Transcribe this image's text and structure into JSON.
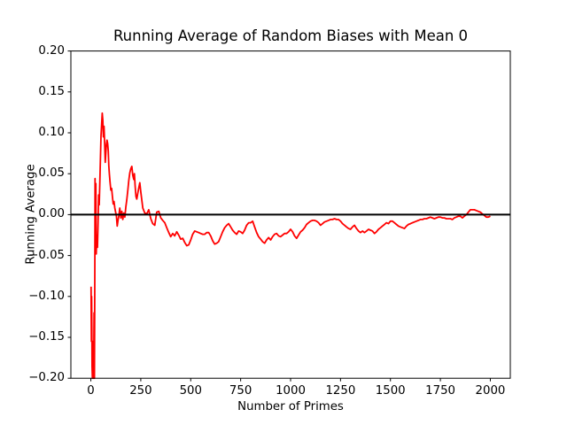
{
  "figure_title": "Running Average of Random Biases with Mean 0",
  "colors": {
    "background": "#ffffff",
    "axes": "#000000",
    "text": "#000000",
    "running_average_line": "#ff0000",
    "zero_line": "#000000"
  },
  "chart_data": {
    "type": "line",
    "title": "Running Average of Random Biases with Mean 0",
    "xlabel": "Number of Primes",
    "ylabel": "Running Average",
    "xlim": [
      -100,
      2100
    ],
    "ylim": [
      -0.2,
      0.2
    ],
    "grid": false,
    "legend": "none",
    "x_ticks": [
      0,
      250,
      500,
      750,
      1000,
      1250,
      1500,
      1750,
      2000
    ],
    "x_tick_labels": [
      "0",
      "250",
      "500",
      "750",
      "1000",
      "1250",
      "1500",
      "1750",
      "2000"
    ],
    "y_ticks": [
      -0.2,
      -0.15,
      -0.1,
      -0.05,
      0.0,
      0.05,
      0.1,
      0.15,
      0.2
    ],
    "y_tick_labels": [
      "−0.20",
      "−0.15",
      "−0.10",
      "−0.05",
      "0.00",
      "0.05",
      "0.10",
      "0.15",
      "0.20"
    ],
    "series": [
      {
        "name": "running-average",
        "color": "#ff0000",
        "line_width": 1.8,
        "x": [
          1,
          2,
          3,
          4,
          5,
          6,
          8,
          10,
          12,
          14,
          16,
          18,
          20,
          21,
          23,
          25,
          27,
          30,
          33,
          36,
          39,
          42,
          45,
          48,
          51,
          54,
          57,
          60,
          63,
          66,
          69,
          72,
          75,
          78,
          81,
          84,
          87,
          90,
          93,
          96,
          100,
          104,
          108,
          112,
          116,
          120,
          124,
          128,
          132,
          136,
          140,
          145,
          150,
          155,
          160,
          165,
          170,
          175,
          180,
          185,
          190,
          195,
          200,
          205,
          210,
          215,
          218,
          222,
          226,
          230,
          235,
          240,
          245,
          250,
          260,
          270,
          280,
          290,
          300,
          310,
          320,
          330,
          340,
          350,
          360,
          370,
          380,
          390,
          400,
          410,
          420,
          430,
          440,
          450,
          460,
          470,
          480,
          490,
          500,
          510,
          520,
          530,
          540,
          550,
          560,
          570,
          580,
          590,
          600,
          610,
          620,
          630,
          640,
          650,
          660,
          670,
          680,
          690,
          700,
          710,
          720,
          730,
          740,
          750,
          760,
          770,
          780,
          790,
          800,
          810,
          820,
          830,
          840,
          850,
          860,
          870,
          880,
          890,
          900,
          910,
          920,
          930,
          940,
          950,
          960,
          970,
          980,
          990,
          1000,
          1010,
          1020,
          1030,
          1040,
          1050,
          1060,
          1070,
          1080,
          1090,
          1100,
          1110,
          1120,
          1130,
          1140,
          1150,
          1160,
          1170,
          1180,
          1190,
          1200,
          1210,
          1220,
          1230,
          1240,
          1250,
          1260,
          1270,
          1280,
          1290,
          1300,
          1310,
          1320,
          1330,
          1340,
          1350,
          1360,
          1370,
          1380,
          1390,
          1400,
          1410,
          1420,
          1430,
          1440,
          1450,
          1460,
          1470,
          1480,
          1490,
          1500,
          1510,
          1520,
          1530,
          1540,
          1550,
          1560,
          1570,
          1580,
          1590,
          1600,
          1610,
          1620,
          1630,
          1640,
          1650,
          1660,
          1670,
          1680,
          1690,
          1700,
          1710,
          1720,
          1730,
          1740,
          1750,
          1760,
          1770,
          1780,
          1790,
          1800,
          1810,
          1820,
          1830,
          1840,
          1850,
          1860,
          1870,
          1880,
          1890,
          1900,
          1910,
          1920,
          1930,
          1940,
          1950,
          1960,
          1970,
          1980,
          1990,
          2000
        ],
        "y": [
          -0.088,
          -0.125,
          -0.155,
          -0.1,
          -0.14,
          -0.185,
          -0.2,
          -0.155,
          -0.198,
          -0.2,
          -0.12,
          -0.2,
          -0.05,
          0.044,
          -0.02,
          0.038,
          -0.048,
          -0.025,
          -0.04,
          -0.01,
          0.024,
          0.012,
          0.04,
          0.07,
          0.096,
          0.11,
          0.124,
          0.115,
          0.095,
          0.108,
          0.088,
          0.064,
          0.076,
          0.086,
          0.091,
          0.087,
          0.078,
          0.06,
          0.049,
          0.04,
          0.03,
          0.032,
          0.022,
          0.013,
          0.016,
          0.008,
          0.003,
          -0.002,
          -0.014,
          -0.007,
          -0.002,
          0.008,
          -0.004,
          0.004,
          -0.006,
          0.002,
          -0.003,
          0.009,
          0.018,
          0.03,
          0.042,
          0.051,
          0.056,
          0.059,
          0.048,
          0.043,
          0.05,
          0.034,
          0.022,
          0.019,
          0.026,
          0.033,
          0.039,
          0.028,
          0.008,
          0.002,
          0.001,
          0.006,
          -0.005,
          -0.011,
          -0.013,
          0.003,
          0.004,
          -0.004,
          -0.007,
          -0.01,
          -0.016,
          -0.022,
          -0.027,
          -0.023,
          -0.026,
          -0.021,
          -0.025,
          -0.03,
          -0.029,
          -0.034,
          -0.038,
          -0.037,
          -0.031,
          -0.024,
          -0.02,
          -0.021,
          -0.022,
          -0.023,
          -0.024,
          -0.024,
          -0.022,
          -0.022,
          -0.026,
          -0.032,
          -0.036,
          -0.035,
          -0.033,
          -0.027,
          -0.021,
          -0.016,
          -0.013,
          -0.011,
          -0.015,
          -0.019,
          -0.022,
          -0.024,
          -0.02,
          -0.021,
          -0.023,
          -0.019,
          -0.013,
          -0.01,
          -0.01,
          -0.008,
          -0.015,
          -0.022,
          -0.027,
          -0.03,
          -0.033,
          -0.035,
          -0.031,
          -0.028,
          -0.031,
          -0.027,
          -0.024,
          -0.023,
          -0.026,
          -0.027,
          -0.025,
          -0.023,
          -0.023,
          -0.021,
          -0.018,
          -0.021,
          -0.026,
          -0.029,
          -0.025,
          -0.021,
          -0.019,
          -0.016,
          -0.012,
          -0.01,
          -0.008,
          -0.007,
          -0.007,
          -0.008,
          -0.01,
          -0.013,
          -0.011,
          -0.009,
          -0.008,
          -0.007,
          -0.006,
          -0.006,
          -0.005,
          -0.006,
          -0.006,
          -0.008,
          -0.011,
          -0.013,
          -0.015,
          -0.017,
          -0.018,
          -0.015,
          -0.013,
          -0.017,
          -0.02,
          -0.022,
          -0.02,
          -0.022,
          -0.02,
          -0.018,
          -0.019,
          -0.02,
          -0.023,
          -0.021,
          -0.018,
          -0.016,
          -0.014,
          -0.012,
          -0.01,
          -0.011,
          -0.008,
          -0.008,
          -0.01,
          -0.012,
          -0.014,
          -0.015,
          -0.016,
          -0.017,
          -0.014,
          -0.012,
          -0.011,
          -0.01,
          -0.009,
          -0.008,
          -0.007,
          -0.006,
          -0.006,
          -0.005,
          -0.005,
          -0.004,
          -0.003,
          -0.004,
          -0.005,
          -0.004,
          -0.003,
          -0.003,
          -0.004,
          -0.004,
          -0.005,
          -0.005,
          -0.005,
          -0.006,
          -0.004,
          -0.003,
          -0.002,
          -0.002,
          -0.004,
          -0.002,
          0.0,
          0.003,
          0.006,
          0.006,
          0.006,
          0.005,
          0.004,
          0.003,
          0.001,
          -0.001,
          -0.003,
          -0.003,
          -0.002
        ]
      },
      {
        "name": "zero-line",
        "color": "#000000",
        "line_width": 2,
        "x": [
          -100,
          2100
        ],
        "y": [
          0,
          0
        ]
      }
    ]
  }
}
